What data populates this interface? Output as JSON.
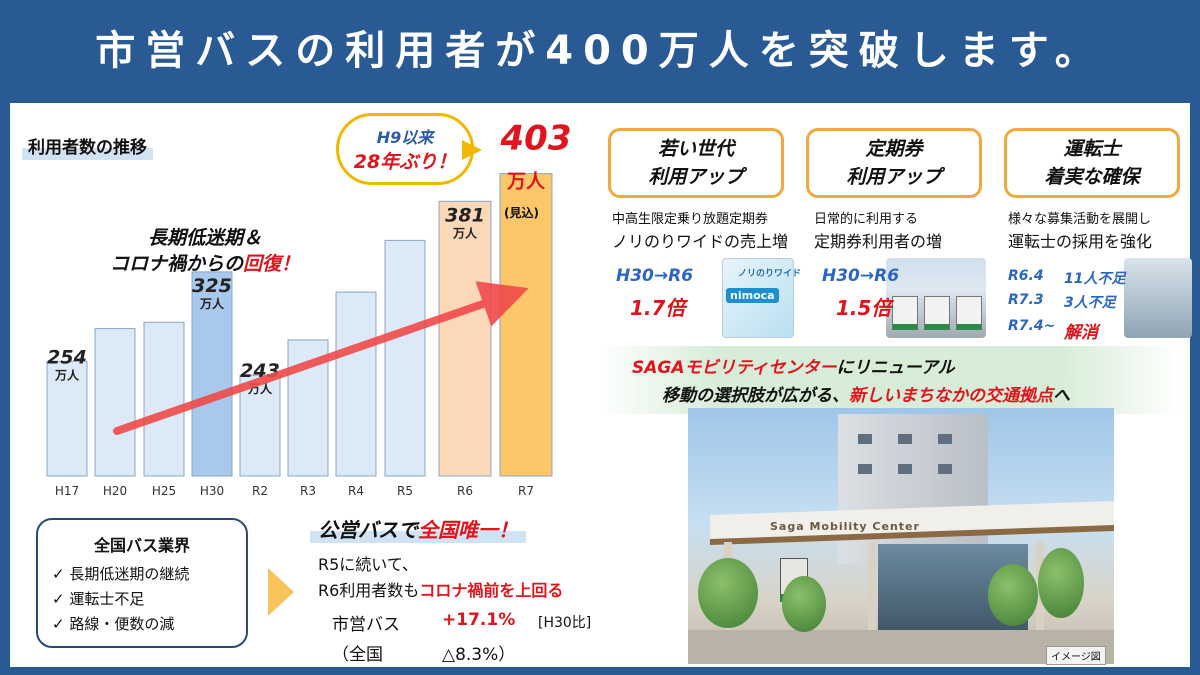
{
  "header": {
    "title": "市営バスの利用者が400万人を突破します。"
  },
  "chart_data": {
    "type": "bar",
    "title": "利用者数の推移",
    "categories": [
      "H17",
      "H20",
      "H25",
      "H30",
      "R2",
      "R3",
      "R4",
      "R5",
      "R6",
      "R7"
    ],
    "values": [
      254,
      280,
      285,
      325,
      243,
      271,
      309,
      350,
      381,
      403
    ],
    "labeled_values": {
      "H17": "254",
      "H30": "325",
      "R2": "243",
      "R6": "381",
      "R7": "403"
    },
    "unit": "万人",
    "highlight_note": "(見込)",
    "colors": {
      "default": "#dce9f6",
      "H30": "#a8c8ec",
      "R6": "#fbd8b8",
      "R7": "#fcc66a",
      "edge": "#8aa6c6",
      "arrow": "#f04a4a"
    }
  },
  "annotations": {
    "slump_line1": "長期低迷期＆",
    "slump_line2_a": "コロナ禍からの",
    "slump_line2_b": "回復！",
    "bubble_line1": "H9以来",
    "bubble_line2": "28年ぶり！"
  },
  "national_box": {
    "title": "全国バス業界",
    "items": [
      "長期低迷期の継続",
      "運転士不足",
      "路線・便数の減"
    ]
  },
  "public_bus": {
    "title_a": "公営バスで",
    "title_b": "全国唯一！",
    "line1": "R5に続いて、",
    "line2_a": "R6利用者数も",
    "line2_b": "コロナ禍前を上回る",
    "city_label": "市営バス",
    "city_value": "+17.1%",
    "city_note": "[H30比]",
    "national_label": "（全国",
    "national_value": "△8.3%）"
  },
  "cards": [
    {
      "title_line1": "若い世代",
      "title_line2": "利用アップ",
      "desc_line1": "中高生限定乗り放題定期券",
      "desc_line2": "ノリのりワイドの売上増",
      "growth_label": "H30→R6",
      "growth_value": "1.7倍",
      "image_brand": "nimoca",
      "image_caption": "ノリのりワイド"
    },
    {
      "title_line1": "定期券",
      "title_line2": "利用アップ",
      "desc_line1": "日常的に利用する",
      "desc_line2": "定期券利用者の増",
      "growth_label": "H30→R6",
      "growth_value": "1.5倍"
    },
    {
      "title_line1": "運転士",
      "title_line2": "着実な確保",
      "desc_line1": "様々な募集活動を展開し",
      "desc_line2": "運転士の採用を強化",
      "rows": [
        {
          "k": "R6.4",
          "v": "11人不足"
        },
        {
          "k": "R7.3",
          "v": "3人不足"
        },
        {
          "k": "R7.4~",
          "v": "解消"
        }
      ]
    }
  ],
  "saga": {
    "line1_a": "SAGAモビリティセンター",
    "line1_b": "にリニューアル",
    "line2_a": "移動の選択肢が広がる、",
    "line2_b": "新しいまちなかの交通拠点",
    "line2_c": "へ",
    "building_sign": "Saga Mobility Center",
    "image_note": "イメージ図"
  }
}
